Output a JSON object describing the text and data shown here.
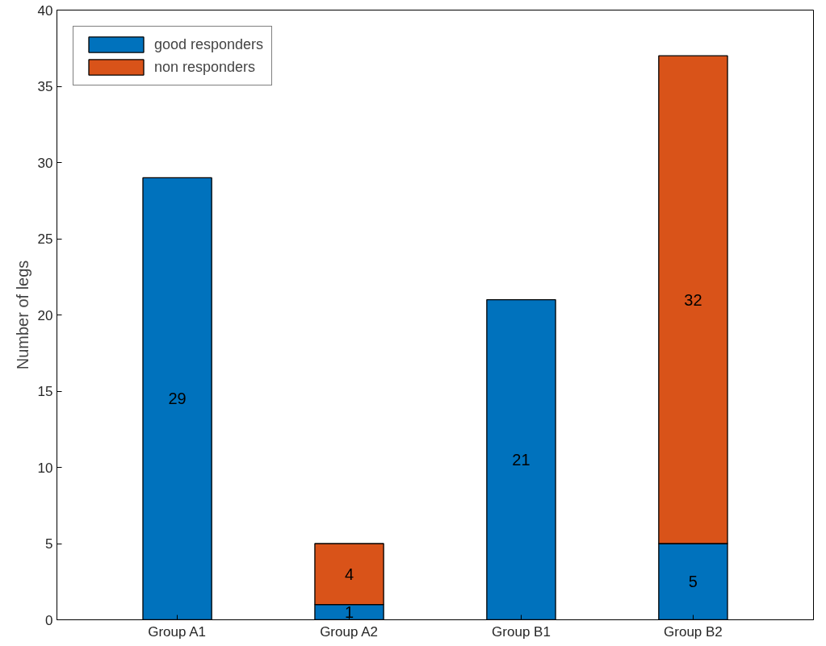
{
  "chart_data": {
    "type": "bar",
    "stacked": true,
    "ylabel": "Number of legs",
    "categories": [
      "Group A1",
      "Group A2",
      "Group B1",
      "Group B2"
    ],
    "series": [
      {
        "name": "good responders",
        "color": "#0072bd",
        "values": [
          29,
          1,
          21,
          5
        ]
      },
      {
        "name": "non responders",
        "color": "#d95319",
        "values": [
          null,
          4,
          null,
          32
        ]
      }
    ],
    "ylim": [
      0,
      40
    ],
    "yticks": [
      0,
      5,
      10,
      15,
      20,
      25,
      30,
      35,
      40
    ],
    "grid": false,
    "legend": "top left",
    "data_labels": true
  }
}
